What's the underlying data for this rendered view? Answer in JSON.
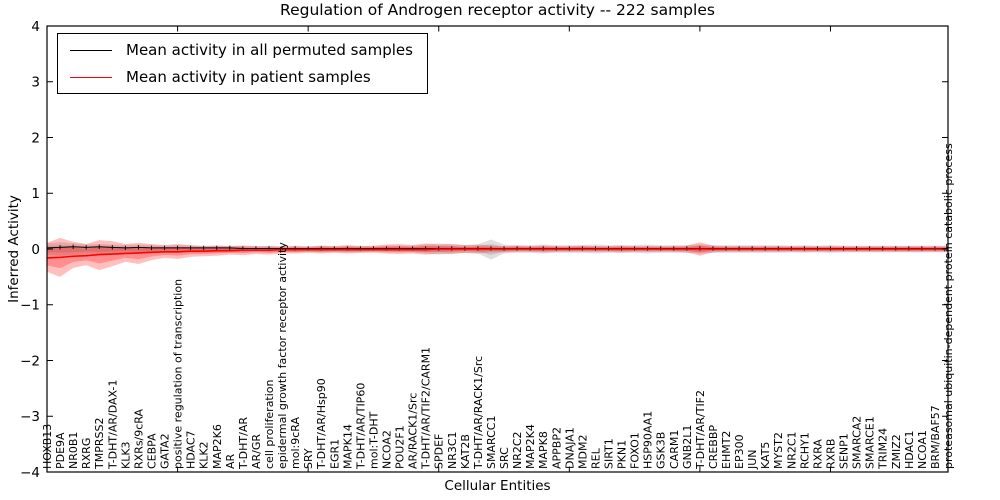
{
  "title": "Regulation of Androgen receptor activity -- 222 samples",
  "legend": {
    "entries": [
      {
        "label": "Mean activity in all permuted samples",
        "color": "#000000"
      },
      {
        "label": "Mean activity in patient samples",
        "color": "#ff0000"
      }
    ]
  },
  "axes": {
    "xlabel": "Cellular Entities",
    "ylabel": "Inferred Activity",
    "y_tick_labels": [
      "4",
      "3",
      "2",
      "1",
      "0",
      "−1",
      "−2",
      "−3",
      "−4"
    ],
    "y_tick_values": [
      4,
      3,
      2,
      1,
      0,
      -1,
      -2,
      -3,
      -4
    ]
  },
  "chart_data": {
    "type": "line",
    "title": "Regulation of Androgen receptor activity -- 222 samples",
    "xlabel": "Cellular Entities",
    "ylabel": "Inferred Activity",
    "ylim": [
      -4,
      4
    ],
    "x_major_tick_every": 10,
    "legend_position": "upper left",
    "grid": false,
    "band_inner_scale": 0.55,
    "categories": [
      "HOXB13",
      "PDE9A",
      "NR0B1",
      "RXRG",
      "TMPRSS2",
      "T-DHT/AR/DAX-1",
      "KLK3",
      "RXRs/9cRA",
      "CEBPA",
      "GATA2",
      "positive regulation of transcription",
      "HDAC7",
      "KLK2",
      "MAP2K6",
      "AR",
      "T-DHT/AR",
      "AR/GR",
      "cell proliferation",
      "epidermal growth factor receptor activity",
      "mol:9cRA",
      "SRY",
      "T-DHT/AR/Hsp90",
      "EGR1",
      "MAPK14",
      "T-DHT/AR/TIP60",
      "mol:T-DHT",
      "NCOA2",
      "POU2F1",
      "AR/RACK1/Src",
      "T-DHT/AR/TIF2/CARM1",
      "SPDEF",
      "NR3C1",
      "KAT2B",
      "T-DHT/AR/RACK1/Src",
      "SMARCC1",
      "SRC",
      "NR2C2",
      "MAP2K4",
      "MAPK8",
      "APPBP2",
      "DNAJA1",
      "MDM2",
      "REL",
      "SIRT1",
      "PKN1",
      "FOXO1",
      "HSP90AA1",
      "GSK3B",
      "CARM1",
      "GNB2L1",
      "T-DHT/AR/TIF2",
      "CREBBP",
      "EHMT2",
      "EP300",
      "JUN",
      "KAT5",
      "MYST2",
      "NR2C1",
      "RCHY1",
      "RXRA",
      "RXRB",
      "SENP1",
      "SMARCA2",
      "SMARCE1",
      "TRIM24",
      "ZMIZ2",
      "HDAC1",
      "NCOA1",
      "BRM/BAF57",
      "proteasomal ubiquitin-dependent protein catabolic process"
    ],
    "series": [
      {
        "name": "Mean activity in all permuted samples",
        "color": "#000000",
        "marker": "|",
        "values": [
          0.02,
          0.03,
          0.04,
          0.03,
          0.04,
          0.03,
          0.02,
          0.03,
          0.02,
          0.02,
          0.02,
          0.02,
          0.02,
          0.02,
          0.02,
          0.01,
          0.01,
          0.01,
          0.01,
          0.01,
          0.01,
          0.01,
          0.01,
          0.01,
          0.01,
          0.01,
          0.01,
          0.01,
          0.01,
          0.01,
          0.01,
          0.01,
          0.01,
          0.01,
          0.01,
          0.01,
          0.01,
          0.01,
          0.01,
          0.01,
          0.01,
          0.01,
          0.01,
          0.01,
          0.01,
          0.01,
          0.01,
          0.01,
          0.01,
          0.01,
          0.01,
          0.01,
          0.01,
          0.01,
          0.01,
          0.01,
          0.01,
          0.01,
          0.01,
          0.01,
          0.01,
          0.01,
          0.01,
          0.01,
          0.01,
          0.01,
          0.01,
          0.01,
          0.01,
          0.01
        ]
      },
      {
        "name": "Mean activity in patient samples",
        "color": "#ff0000",
        "marker": "none",
        "values": [
          -0.16,
          -0.15,
          -0.13,
          -0.12,
          -0.1,
          -0.09,
          -0.08,
          -0.07,
          -0.06,
          -0.05,
          -0.05,
          -0.04,
          -0.04,
          -0.03,
          -0.03,
          -0.02,
          -0.02,
          -0.02,
          -0.01,
          -0.01,
          -0.01,
          -0.01,
          -0.01,
          -0.01,
          -0.01,
          -0.01,
          -0.01,
          -0.01,
          -0.01,
          -0.01,
          0,
          0,
          0,
          0,
          0,
          0,
          0,
          0,
          0,
          0,
          0,
          0,
          0,
          0,
          0,
          0,
          0,
          0,
          0,
          0,
          0,
          0,
          0,
          0,
          0,
          0,
          0,
          0,
          0,
          0,
          0,
          0,
          0,
          0,
          0,
          0,
          0,
          0,
          0,
          0
        ]
      }
    ],
    "bands": [
      {
        "name": "permuted-samples-spread",
        "color": "#808080",
        "opacity": 0.25,
        "upper": [
          0.1,
          0.12,
          0.1,
          0.08,
          0.09,
          0.08,
          0.07,
          0.08,
          0.07,
          0.06,
          0.07,
          0.06,
          0.06,
          0.06,
          0.06,
          0.06,
          0.05,
          0.06,
          0.05,
          0.06,
          0.05,
          0.06,
          0.05,
          0.06,
          0.06,
          0.05,
          0.06,
          0.06,
          0.06,
          0.08,
          0.1,
          0.08,
          0.07,
          0.08,
          0.17,
          0.08,
          0.07,
          0.07,
          0.08,
          0.07,
          0.07,
          0.07,
          0.08,
          0.07,
          0.07,
          0.07,
          0.08,
          0.07,
          0.07,
          0.07,
          0.08,
          0.07,
          0.07,
          0.07,
          0.07,
          0.07,
          0.07,
          0.06,
          0.07,
          0.06,
          0.07,
          0.06,
          0.06,
          0.06,
          0.06,
          0.06,
          0.06,
          0.06,
          0.06,
          0.06
        ],
        "lower": [
          -0.1,
          -0.12,
          -0.1,
          -0.08,
          -0.09,
          -0.08,
          -0.07,
          -0.08,
          -0.07,
          -0.06,
          -0.07,
          -0.06,
          -0.06,
          -0.06,
          -0.06,
          -0.06,
          -0.05,
          -0.06,
          -0.05,
          -0.06,
          -0.05,
          -0.06,
          -0.05,
          -0.06,
          -0.06,
          -0.05,
          -0.06,
          -0.06,
          -0.06,
          -0.08,
          -0.1,
          -0.08,
          -0.07,
          -0.08,
          -0.19,
          -0.08,
          -0.07,
          -0.07,
          -0.08,
          -0.07,
          -0.07,
          -0.07,
          -0.08,
          -0.07,
          -0.07,
          -0.07,
          -0.08,
          -0.07,
          -0.07,
          -0.07,
          -0.08,
          -0.07,
          -0.07,
          -0.07,
          -0.07,
          -0.07,
          -0.07,
          -0.06,
          -0.07,
          -0.06,
          -0.07,
          -0.06,
          -0.06,
          -0.06,
          -0.06,
          -0.06,
          -0.06,
          -0.06,
          -0.06,
          -0.06
        ]
      },
      {
        "name": "patient-samples-spread",
        "color": "#ff0000",
        "opacity": 0.25,
        "upper": [
          0.11,
          0.2,
          0.13,
          0.09,
          0.16,
          0.14,
          0.09,
          0.11,
          0.09,
          0.07,
          0.09,
          0.07,
          0.05,
          0.06,
          0.05,
          0.06,
          0.05,
          0.05,
          0.04,
          0.05,
          0.04,
          0.06,
          0.05,
          0.07,
          0.05,
          0.06,
          0.08,
          0.09,
          0.07,
          0.1,
          0.08,
          0.09,
          0.07,
          0.08,
          0.06,
          0.05,
          0.06,
          0.05,
          0.06,
          0.05,
          0.05,
          0.06,
          0.05,
          0.05,
          0.06,
          0.05,
          0.05,
          0.05,
          0.05,
          0.06,
          0.12,
          0.06,
          0.05,
          0.05,
          0.05,
          0.05,
          0.05,
          0.05,
          0.05,
          0.05,
          0.05,
          0.05,
          0.05,
          0.05,
          0.05,
          0.05,
          0.05,
          0.05,
          0.05,
          0.05
        ],
        "lower": [
          -0.41,
          -0.5,
          -0.34,
          -0.29,
          -0.38,
          -0.31,
          -0.23,
          -0.27,
          -0.2,
          -0.16,
          -0.18,
          -0.14,
          -0.13,
          -0.12,
          -0.1,
          -0.11,
          -0.09,
          -0.1,
          -0.08,
          -0.08,
          -0.07,
          -0.08,
          -0.07,
          -0.08,
          -0.07,
          -0.07,
          -0.08,
          -0.09,
          -0.08,
          -0.1,
          -0.08,
          -0.09,
          -0.07,
          -0.08,
          -0.06,
          -0.06,
          -0.05,
          -0.05,
          -0.06,
          -0.05,
          -0.05,
          -0.05,
          -0.05,
          -0.05,
          -0.06,
          -0.05,
          -0.05,
          -0.05,
          -0.05,
          -0.06,
          -0.12,
          -0.06,
          -0.05,
          -0.05,
          -0.05,
          -0.05,
          -0.05,
          -0.05,
          -0.05,
          -0.05,
          -0.05,
          -0.05,
          -0.05,
          -0.05,
          -0.05,
          -0.05,
          -0.05,
          -0.05,
          -0.05,
          -0.05
        ]
      }
    ]
  }
}
